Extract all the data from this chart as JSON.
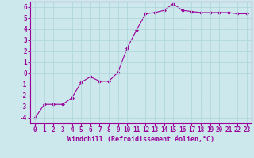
{
  "x": [
    0,
    1,
    2,
    3,
    4,
    5,
    6,
    7,
    8,
    9,
    10,
    11,
    12,
    13,
    14,
    15,
    16,
    17,
    18,
    19,
    20,
    21,
    22,
    23
  ],
  "y": [
    -4.0,
    -2.8,
    -2.8,
    -2.8,
    -2.2,
    -0.8,
    -0.3,
    -0.7,
    -0.7,
    0.1,
    2.3,
    3.9,
    5.4,
    5.5,
    5.7,
    6.3,
    5.7,
    5.6,
    5.5,
    5.5,
    5.5,
    5.5,
    5.4,
    5.4
  ],
  "xlabel": "Windchill (Refroidissement éolien,°C)",
  "ylim": [
    -4.5,
    6.5
  ],
  "xlim": [
    -0.5,
    23.5
  ],
  "yticks": [
    -4,
    -3,
    -2,
    -1,
    0,
    1,
    2,
    3,
    4,
    5,
    6
  ],
  "xticks": [
    0,
    1,
    2,
    3,
    4,
    5,
    6,
    7,
    8,
    9,
    10,
    11,
    12,
    13,
    14,
    15,
    16,
    17,
    18,
    19,
    20,
    21,
    22,
    23
  ],
  "line_color": "#990099",
  "marker": "D",
  "marker_size": 2.0,
  "background_color": "#cde8ec",
  "grid_color": "#b0d8dc",
  "tick_color": "#990099",
  "label_color": "#990099",
  "font_size": 5.5,
  "xlabel_fontsize": 6.0
}
